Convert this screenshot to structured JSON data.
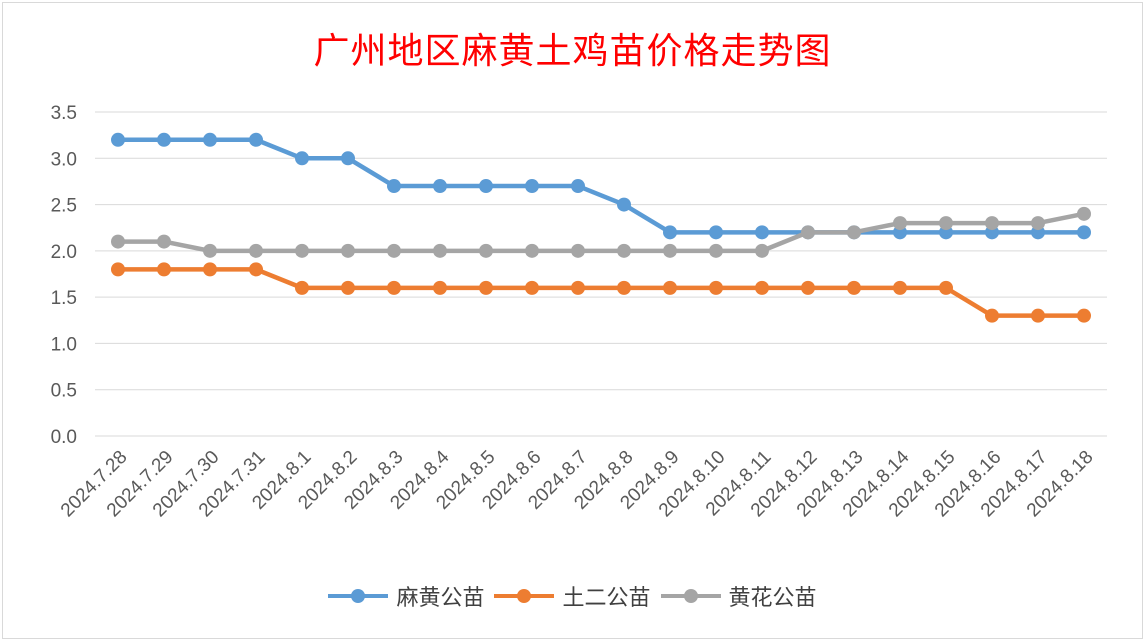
{
  "chart_data": {
    "type": "line",
    "title": "广州地区麻黄土鸡苗价格走势图",
    "xlabel": "",
    "ylabel": "",
    "ylim": [
      0,
      3.5
    ],
    "yticks": [
      "0.0",
      "0.5",
      "1.0",
      "1.5",
      "2.0",
      "2.5",
      "3.0",
      "3.5"
    ],
    "grid": true,
    "legend_position": "bottom",
    "categories": [
      "2024.7.28",
      "2024.7.29",
      "2024.7.30",
      "2024.7.31",
      "2024.8.1",
      "2024.8.2",
      "2024.8.3",
      "2024.8.4",
      "2024.8.5",
      "2024.8.6",
      "2024.8.7",
      "2024.8.8",
      "2024.8.9",
      "2024.8.10",
      "2024.8.11",
      "2024.8.12",
      "2024.8.13",
      "2024.8.14",
      "2024.8.15",
      "2024.8.16",
      "2024.8.17",
      "2024.8.18"
    ],
    "series": [
      {
        "name": "麻黄公苗",
        "color": "#5b9bd5",
        "values": [
          3.2,
          3.2,
          3.2,
          3.2,
          3.0,
          3.0,
          2.7,
          2.7,
          2.7,
          2.7,
          2.7,
          2.5,
          2.2,
          2.2,
          2.2,
          2.2,
          2.2,
          2.2,
          2.2,
          2.2,
          2.2,
          2.2
        ]
      },
      {
        "name": "土二公苗",
        "color": "#ed7d31",
        "values": [
          1.8,
          1.8,
          1.8,
          1.8,
          1.6,
          1.6,
          1.6,
          1.6,
          1.6,
          1.6,
          1.6,
          1.6,
          1.6,
          1.6,
          1.6,
          1.6,
          1.6,
          1.6,
          1.6,
          1.3,
          1.3,
          1.3
        ]
      },
      {
        "name": "黄花公苗",
        "color": "#a5a5a5",
        "values": [
          2.1,
          2.1,
          2.0,
          2.0,
          2.0,
          2.0,
          2.0,
          2.0,
          2.0,
          2.0,
          2.0,
          2.0,
          2.0,
          2.0,
          2.0,
          2.2,
          2.2,
          2.3,
          2.3,
          2.3,
          2.3,
          2.4
        ]
      }
    ]
  }
}
